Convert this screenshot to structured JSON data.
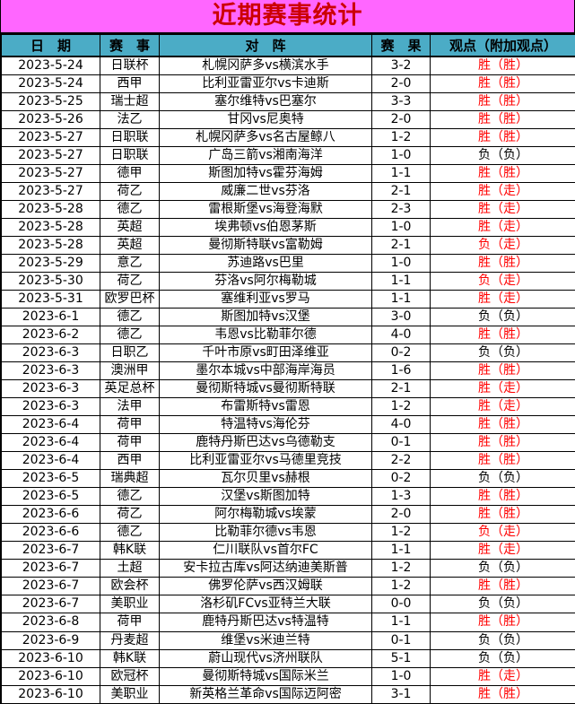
{
  "title": "近期赛事统计",
  "colors": {
    "title_bg": "#FF66FF",
    "title_text": "#CC0000",
    "header_bg": "#4BACC6",
    "opinion_highlight": "#FF0000",
    "text": "#000000"
  },
  "table": {
    "headers": [
      "日　期",
      "赛　事",
      "对　阵",
      "赛　果",
      "观点（附加观点）"
    ],
    "rows": [
      {
        "date": "2023-5-24",
        "league": "日联杯",
        "match": "札幌冈萨多vs横滨水手",
        "result": "3-2",
        "opinion": "胜（胜）",
        "highlight": true
      },
      {
        "date": "2023-5-24",
        "league": "西甲",
        "match": "比利亚雷亚尔vs卡迪斯",
        "result": "2-0",
        "opinion": "胜（胜）",
        "highlight": true
      },
      {
        "date": "2023-5-25",
        "league": "瑞士超",
        "match": "塞尔维特vs巴塞尔",
        "result": "3-3",
        "opinion": "胜（胜）",
        "highlight": true
      },
      {
        "date": "2023-5-26",
        "league": "法乙",
        "match": "甘冈vs尼奥特",
        "result": "2-0",
        "opinion": "胜（胜）",
        "highlight": true
      },
      {
        "date": "2023-5-27",
        "league": "日职联",
        "match": "札幌冈萨多vs名古屋鲸八",
        "result": "1-2",
        "opinion": "胜（胜）",
        "highlight": true
      },
      {
        "date": "2023-5-27",
        "league": "日职联",
        "match": "广岛三箭vs湘南海洋",
        "result": "1-0",
        "opinion": "负（负）",
        "highlight": false
      },
      {
        "date": "2023-5-27",
        "league": "德甲",
        "match": "斯图加特vs霍芬海姆",
        "result": "1-1",
        "opinion": "胜（胜）",
        "highlight": true
      },
      {
        "date": "2023-5-27",
        "league": "荷乙",
        "match": "威廉二世vs芬洛",
        "result": "2-1",
        "opinion": "胜（走）",
        "highlight": true
      },
      {
        "date": "2023-5-28",
        "league": "德乙",
        "match": "雷根斯堡vs海登海默",
        "result": "2-3",
        "opinion": "胜（走）",
        "highlight": true
      },
      {
        "date": "2023-5-28",
        "league": "英超",
        "match": "埃弗顿vs伯恩茅斯",
        "result": "1-0",
        "opinion": "胜（走）",
        "highlight": true
      },
      {
        "date": "2023-5-28",
        "league": "英超",
        "match": "曼彻斯特联vs富勒姆",
        "result": "2-1",
        "opinion": "负（走）",
        "highlight": true
      },
      {
        "date": "2023-5-29",
        "league": "意乙",
        "match": "苏迪路vs巴里",
        "result": "1-0",
        "opinion": "胜（胜）",
        "highlight": true
      },
      {
        "date": "2023-5-30",
        "league": "荷乙",
        "match": "芬洛vs阿尔梅勒城",
        "result": "1-1",
        "opinion": "负（走）",
        "highlight": true
      },
      {
        "date": "2023-5-31",
        "league": "欧罗巴杯",
        "match": "塞维利亚vs罗马",
        "result": "1-1",
        "opinion": "胜（走）",
        "highlight": true
      },
      {
        "date": "2023-6-1",
        "league": "德乙",
        "match": "斯图加特vs汉堡",
        "result": "3-0",
        "opinion": "负（负）",
        "highlight": false
      },
      {
        "date": "2023-6-2",
        "league": "德乙",
        "match": "韦恩vs比勒菲尔德",
        "result": "4-0",
        "opinion": "胜（胜）",
        "highlight": true
      },
      {
        "date": "2023-6-3",
        "league": "日职乙",
        "match": "千叶市原vs町田泽维亚",
        "result": "0-2",
        "opinion": "负（负）",
        "highlight": false
      },
      {
        "date": "2023-6-3",
        "league": "澳洲甲",
        "match": "墨尔本城vs中部海岸海员",
        "result": "1-6",
        "opinion": "胜（胜）",
        "highlight": true
      },
      {
        "date": "2023-6-3",
        "league": "英足总杯",
        "match": "曼彻斯特城vs曼彻斯特联",
        "result": "2-1",
        "opinion": "胜（走）",
        "highlight": true
      },
      {
        "date": "2023-6-3",
        "league": "法甲",
        "match": "布雷斯特vs雷恩",
        "result": "1-2",
        "opinion": "胜（走）",
        "highlight": true
      },
      {
        "date": "2023-6-4",
        "league": "荷甲",
        "match": "特温特vs海伦芬",
        "result": "4-0",
        "opinion": "胜（胜）",
        "highlight": true
      },
      {
        "date": "2023-6-4",
        "league": "荷甲",
        "match": "鹿特丹斯巴达vs乌德勒支",
        "result": "0-1",
        "opinion": "胜（胜）",
        "highlight": true
      },
      {
        "date": "2023-6-4",
        "league": "西甲",
        "match": "比利亚雷亚尔vs马德里竞技",
        "result": "2-2",
        "opinion": "胜（胜）",
        "highlight": true
      },
      {
        "date": "2023-6-5",
        "league": "瑞典超",
        "match": "瓦尔贝里vs赫根",
        "result": "0-2",
        "opinion": "负（负）",
        "highlight": false
      },
      {
        "date": "2023-6-5",
        "league": "德乙",
        "match": "汉堡vs斯图加特",
        "result": "1-3",
        "opinion": "胜（胜）",
        "highlight": true
      },
      {
        "date": "2023-6-6",
        "league": "荷乙",
        "match": "阿尔梅勒城vs埃蒙",
        "result": "2-0",
        "opinion": "胜（胜）",
        "highlight": true
      },
      {
        "date": "2023-6-6",
        "league": "德乙",
        "match": "比勒菲尔德vs韦恩",
        "result": "1-2",
        "opinion": "负（走）",
        "highlight": true
      },
      {
        "date": "2023-6-7",
        "league": "韩K联",
        "match": "仁川联队vs首尔FC",
        "result": "1-1",
        "opinion": "胜（走）",
        "highlight": true
      },
      {
        "date": "2023-6-7",
        "league": "土超",
        "match": "安卡拉古库vs阿达纳迪美斯普",
        "result": "1-2",
        "opinion": "负（负）",
        "highlight": false
      },
      {
        "date": "2023-6-7",
        "league": "欧会杯",
        "match": "佛罗伦萨vs西汉姆联",
        "result": "1-2",
        "opinion": "胜（胜）",
        "highlight": true
      },
      {
        "date": "2023-6-7",
        "league": "美职业",
        "match": "洛杉矶FCvs亚特兰大联",
        "result": "0-0",
        "opinion": "负（负）",
        "highlight": false
      },
      {
        "date": "2023-6-8",
        "league": "荷甲",
        "match": "鹿特丹斯巴达vs特温特",
        "result": "1-1",
        "opinion": "胜（胜）",
        "highlight": true
      },
      {
        "date": "2023-6-9",
        "league": "丹麦超",
        "match": "维堡vs米迪兰特",
        "result": "0-1",
        "opinion": "负（负）",
        "highlight": false
      },
      {
        "date": "2023-6-10",
        "league": "韩K联",
        "match": "蔚山现代vs济州联队",
        "result": "5-1",
        "opinion": "负（负）",
        "highlight": false
      },
      {
        "date": "2023-6-10",
        "league": "欧冠杯",
        "match": "曼彻斯特城vs国际米兰",
        "result": "1-0",
        "opinion": "胜（走）",
        "highlight": true
      },
      {
        "date": "2023-6-10",
        "league": "美职业",
        "match": "新英格兰革命vs国际迈阿密",
        "result": "3-1",
        "opinion": "胜（胜）",
        "highlight": true
      }
    ]
  }
}
